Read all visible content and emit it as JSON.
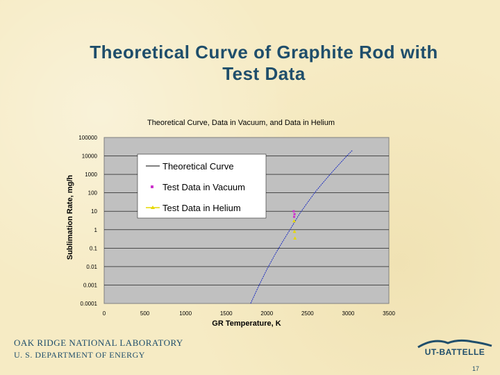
{
  "slide": {
    "title_line1": "Theoretical Curve of Graphite Rod with",
    "title_line2": "Test Data",
    "footer_org": "OAK RIDGE NATIONAL LABORATORY",
    "footer_dept": "U. S. DEPARTMENT OF ENERGY",
    "logo_text": "UT-BATTELLE",
    "page_number": "17"
  },
  "colors": {
    "plot_bg": "#c0c0c0",
    "curve": "#1a2bbf",
    "vacuum": "#cc33cc",
    "helium": "#e6d800",
    "title": "#1f4e6b"
  },
  "chart_data": {
    "type": "scatter",
    "title": "Theoretical Curve, Data in Vacuum, and Data in Helium",
    "xlabel": "GR Temperature, K",
    "ylabel": "Sublimation Rate, mg/h",
    "xlim": [
      0,
      3500
    ],
    "ylim": [
      0.0001,
      100000
    ],
    "y_scale": "log",
    "grid": "horizontal",
    "legend_position": "upper-left",
    "x_ticks": [
      "0",
      "500",
      "1000",
      "1500",
      "2000",
      "2500",
      "3000",
      "3500"
    ],
    "y_ticks": [
      "0.0001",
      "0.001",
      "0.01",
      "0.1",
      "1",
      "10",
      "100",
      "1000",
      "10000",
      "100000"
    ],
    "series": [
      {
        "name": "Theoretical Curve",
        "kind": "line",
        "x": [
          1800,
          1900,
          2000,
          2100,
          2200,
          2300,
          2400,
          2500,
          2600,
          2700,
          2800,
          2900,
          3000,
          3050
        ],
        "y": [
          0.0001,
          0.0009,
          0.007,
          0.045,
          0.25,
          1.3,
          7,
          30,
          120,
          400,
          1300,
          4000,
          12000,
          20000
        ]
      },
      {
        "name": "Test Data in Vacuum",
        "kind": "points",
        "x": [
          2330,
          2335,
          2340
        ],
        "y": [
          10,
          5,
          7
        ]
      },
      {
        "name": "Test Data in Helium",
        "kind": "points",
        "x": [
          2335,
          2340,
          2345
        ],
        "y": [
          3,
          0.8,
          0.35
        ]
      }
    ]
  }
}
